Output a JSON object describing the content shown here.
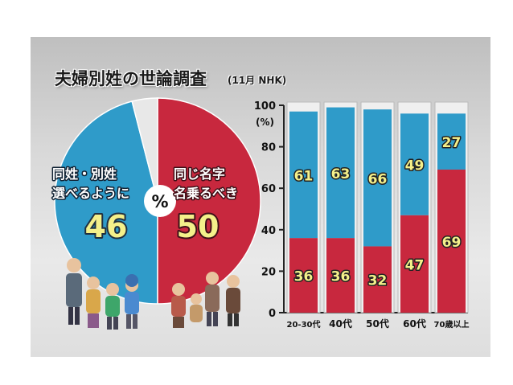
{
  "title": "夫婦別姓の世論調査",
  "subtitle": "(11月 NHK)",
  "pie": {
    "center_label": "%",
    "slices": [
      {
        "label_line1": "同姓・別姓",
        "label_line2": "選べるように",
        "value": 46,
        "value_text": "46",
        "color": "#2f9bc9"
      },
      {
        "label_line1": "同じ名字",
        "label_line2": "名乗るべき",
        "value": 50,
        "value_text": "50",
        "color": "#c8283e"
      }
    ],
    "remainder_color": "#e8e8e8"
  },
  "chart_data": {
    "type": "bar",
    "stacked": true,
    "categories": [
      "20-30代",
      "40代",
      "50代",
      "60代",
      "70歳以上"
    ],
    "series": [
      {
        "values": [
          36,
          36,
          32,
          47,
          69
        ],
        "color": "#c8283e"
      },
      {
        "values": [
          61,
          63,
          66,
          49,
          27
        ],
        "color": "#2f9bc9"
      }
    ],
    "ylim": [
      0,
      100
    ],
    "yticks": [
      "0",
      "20",
      "40",
      "60",
      "80",
      "100"
    ],
    "yunit": "(%)",
    "grid": false
  },
  "colors": {
    "red": "#c8283e",
    "blue": "#2f9bc9",
    "column_bg": "#efefef"
  }
}
